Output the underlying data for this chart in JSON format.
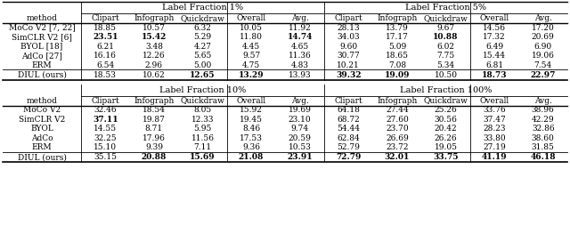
{
  "sections": [
    {
      "header": "Label Fraction 1%",
      "header2": "Label Fraction 5%",
      "rows": [
        {
          "method": "MoCo V2 [7, 22]",
          "vals": [
            "18.85",
            "10.57",
            "6.32",
            "10.05",
            "11.92",
            "28.13",
            "13.79",
            "9.67",
            "14.56",
            "17.20"
          ],
          "bold": [],
          "ours": false
        },
        {
          "method": "SimCLR V2 [6]",
          "vals": [
            "23.51",
            "15.42",
            "5.29",
            "11.80",
            "14.74",
            "34.03",
            "17.17",
            "10.88",
            "17.32",
            "20.69"
          ],
          "bold": [
            "23.51",
            "15.42",
            "14.74",
            "10.88"
          ],
          "ours": false
        },
        {
          "method": "BYOL [18]",
          "vals": [
            "6.21",
            "3.48",
            "4.27",
            "4.45",
            "4.65",
            "9.60",
            "5.09",
            "6.02",
            "6.49",
            "6.90"
          ],
          "bold": [],
          "ours": false
        },
        {
          "method": "AdCo [27]",
          "vals": [
            "16.16",
            "12.26",
            "5.65",
            "9.57",
            "11.36",
            "30.77",
            "18.65",
            "7.75",
            "15.44",
            "19.06"
          ],
          "bold": [],
          "ours": false
        },
        {
          "method": "ERM",
          "vals": [
            "6.54",
            "2.96",
            "5.00",
            "4.75",
            "4.83",
            "10.21",
            "7.08",
            "5.34",
            "6.81",
            "7.54"
          ],
          "bold": [],
          "ours": false
        },
        {
          "method": "DIUL (ours)",
          "vals": [
            "18.53",
            "10.62",
            "12.65",
            "13.29",
            "13.93",
            "39.32",
            "19.09",
            "10.50",
            "18.73",
            "22.97"
          ],
          "bold": [
            "12.65",
            "13.29",
            "39.32",
            "19.09",
            "18.73",
            "22.97"
          ],
          "ours": true
        }
      ]
    },
    {
      "header": "Label Fraction 10%",
      "header2": "Label Fraction 100%",
      "rows": [
        {
          "method": "MoCo V2",
          "vals": [
            "32.46",
            "18.54",
            "8.05",
            "15.92",
            "19.69",
            "64.18",
            "27.44",
            "25.26",
            "33.76",
            "38.96"
          ],
          "bold": [],
          "ours": false
        },
        {
          "method": "SimCLR V2",
          "vals": [
            "37.11",
            "19.87",
            "12.33",
            "19.45",
            "23.10",
            "68.72",
            "27.60",
            "30.56",
            "37.47",
            "42.29"
          ],
          "bold": [
            "37.11"
          ],
          "ours": false
        },
        {
          "method": "BYOL",
          "vals": [
            "14.55",
            "8.71",
            "5.95",
            "8.46",
            "9.74",
            "54.44",
            "23.70",
            "20.42",
            "28.23",
            "32.86"
          ],
          "bold": [],
          "ours": false
        },
        {
          "method": "AdCo",
          "vals": [
            "32.25",
            "17.96",
            "11.56",
            "17.53",
            "20.59",
            "62.84",
            "26.69",
            "26.26",
            "33.80",
            "38.60"
          ],
          "bold": [],
          "ours": false
        },
        {
          "method": "ERM",
          "vals": [
            "15.10",
            "9.39",
            "7.11",
            "9.36",
            "10.53",
            "52.79",
            "23.72",
            "19.05",
            "27.19",
            "31.85"
          ],
          "bold": [],
          "ours": false
        },
        {
          "method": "DIUL (ours)",
          "vals": [
            "35.15",
            "20.88",
            "15.69",
            "21.08",
            "23.91",
            "72.79",
            "32.01",
            "33.75",
            "41.19",
            "46.18"
          ],
          "bold": [
            "20.88",
            "15.69",
            "21.08",
            "23.91",
            "72.79",
            "32.01",
            "33.75",
            "41.19",
            "46.18"
          ],
          "ours": true
        }
      ]
    }
  ],
  "col_headers": [
    "method",
    "Clipart",
    "Infograph",
    "Quickdraw",
    "Overall",
    "Avg.",
    "Clipart",
    "Infograph",
    "Quickdraw",
    "Overall",
    "Avg."
  ],
  "font_size": 6.5,
  "header_font_size": 7.0,
  "background": "#ffffff"
}
